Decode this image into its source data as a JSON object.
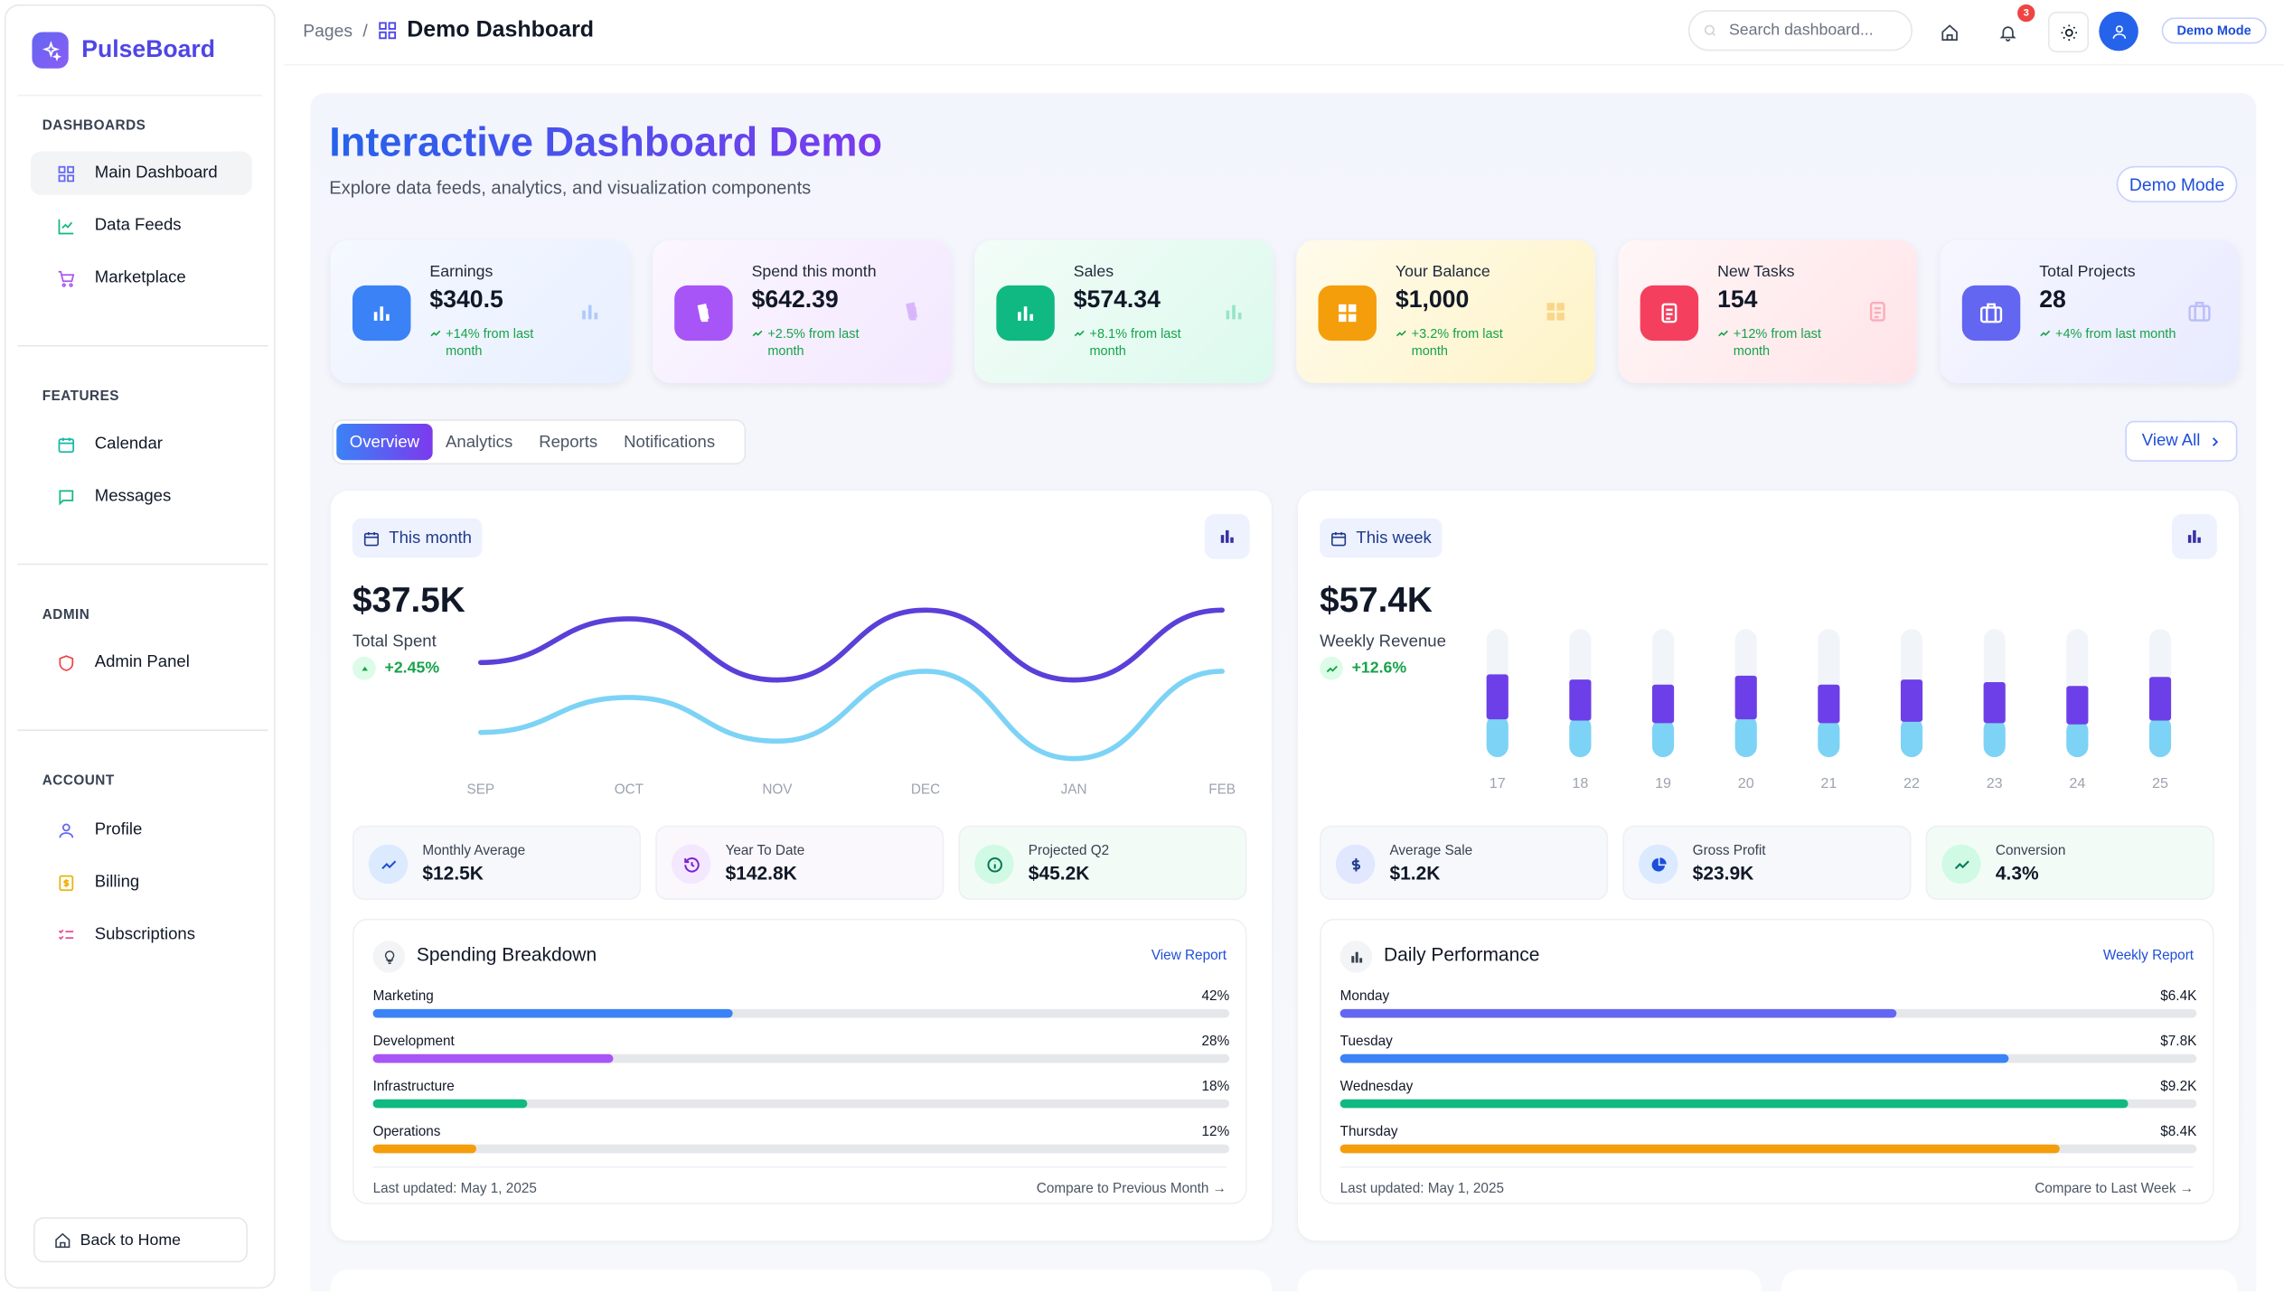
{
  "brand": {
    "name": "PulseBoard"
  },
  "sidebar": {
    "sections": [
      {
        "title": "DASHBOARDS",
        "items": [
          {
            "label": "Main Dashboard"
          },
          {
            "label": "Data Feeds"
          },
          {
            "label": "Marketplace"
          }
        ]
      },
      {
        "title": "FEATURES",
        "items": [
          {
            "label": "Calendar"
          },
          {
            "label": "Messages"
          }
        ]
      },
      {
        "title": "ADMIN",
        "items": [
          {
            "label": "Admin Panel"
          }
        ]
      },
      {
        "title": "ACCOUNT",
        "items": [
          {
            "label": "Profile"
          },
          {
            "label": "Billing"
          },
          {
            "label": "Subscriptions"
          }
        ]
      }
    ],
    "back_label": "Back to Home"
  },
  "header": {
    "crumb": "Pages",
    "sep": "/",
    "title": "Demo Dashboard",
    "search_placeholder": "Search dashboard...",
    "notif_count": "3",
    "demo_label": "Demo Mode"
  },
  "hero": {
    "title": "Interactive Dashboard Demo",
    "subtitle": "Explore data feeds, analytics, and visualization components",
    "demo_btn": "Demo Mode"
  },
  "stats": [
    {
      "label": "Earnings",
      "value": "$340.5",
      "trend": "+14% from last month",
      "color": "#3b82f6"
    },
    {
      "label": "Spend this month",
      "value": "$642.39",
      "trend": "+2.5% from last month",
      "color": "#a855f7"
    },
    {
      "label": "Sales",
      "value": "$574.34",
      "trend": "+8.1% from last month",
      "color": "#10b981"
    },
    {
      "label": "Your Balance",
      "value": "$1,000",
      "trend": "+3.2% from last month",
      "color": "#f59e0b"
    },
    {
      "label": "New Tasks",
      "value": "154",
      "trend": "+12% from last month",
      "color": "#f43f5e"
    },
    {
      "label": "Total Projects",
      "value": "28",
      "trend": "+4% from last month",
      "color": "#6366f1"
    }
  ],
  "tabs": [
    {
      "label": "Overview"
    },
    {
      "label": "Analytics"
    },
    {
      "label": "Reports"
    },
    {
      "label": "Notifications"
    }
  ],
  "view_all": "View All",
  "left_panel": {
    "period": "This month",
    "value": "$37.5K",
    "label": "Total Spent",
    "trend": "+2.45%",
    "minis": [
      {
        "label": "Monthly Average",
        "value": "$12.5K"
      },
      {
        "label": "Year To Date",
        "value": "$142.8K"
      },
      {
        "label": "Projected Q2",
        "value": "$45.2K"
      }
    ],
    "breakdown": {
      "title": "Spending Breakdown",
      "link": "View Report",
      "rows": [
        {
          "label": "Marketing",
          "value": "42%",
          "pct": 42,
          "color": "#3b82f6"
        },
        {
          "label": "Development",
          "value": "28%",
          "pct": 28,
          "color": "#a855f7"
        },
        {
          "label": "Infrastructure",
          "value": "18%",
          "pct": 18,
          "color": "#10b981"
        },
        {
          "label": "Operations",
          "value": "12%",
          "pct": 12,
          "color": "#f59e0b"
        }
      ],
      "updated": "Last updated: May 1, 2025",
      "compare": "Compare to Previous Month →"
    }
  },
  "right_panel": {
    "period": "This week",
    "value": "$57.4K",
    "label": "Weekly Revenue",
    "trend": "+12.6%",
    "minis": [
      {
        "label": "Average Sale",
        "value": "$1.2K"
      },
      {
        "label": "Gross Profit",
        "value": "$23.9K"
      },
      {
        "label": "Conversion",
        "value": "4.3%"
      }
    ],
    "performance": {
      "title": "Daily Performance",
      "link": "Weekly Report",
      "rows": [
        {
          "label": "Monday",
          "value": "$6.4K",
          "pct": 65,
          "color": "#6366f1"
        },
        {
          "label": "Tuesday",
          "value": "$7.8K",
          "pct": 78,
          "color": "#3b82f6"
        },
        {
          "label": "Wednesday",
          "value": "$9.2K",
          "pct": 92,
          "color": "#10b981"
        },
        {
          "label": "Thursday",
          "value": "$8.4K",
          "pct": 84,
          "color": "#f59e0b"
        }
      ],
      "updated": "Last updated: May 1, 2025",
      "compare": "Compare to Last Week →"
    }
  },
  "chart_data": [
    {
      "type": "line",
      "x": [
        "SEP",
        "OCT",
        "NOV",
        "DEC",
        "JAN",
        "FEB"
      ],
      "series": [
        {
          "values": [
            0.6,
            0.85,
            0.5,
            0.9,
            0.5,
            0.9
          ],
          "color": "#5b3fd9"
        },
        {
          "values": [
            0.2,
            0.4,
            0.15,
            0.55,
            0.05,
            0.55
          ],
          "color": "#7dd3f5"
        }
      ]
    },
    {
      "type": "bar",
      "categories": [
        "17",
        "18",
        "19",
        "20",
        "21",
        "22",
        "23",
        "24",
        "25"
      ],
      "series": [
        {
          "values": [
            0.35,
            0.32,
            0.3,
            0.34,
            0.3,
            0.33,
            0.32,
            0.3,
            0.34
          ],
          "color": "#6d3fe8"
        },
        {
          "values": [
            0.33,
            0.32,
            0.3,
            0.33,
            0.3,
            0.31,
            0.3,
            0.29,
            0.32
          ],
          "color": "#7dd3f5"
        }
      ]
    }
  ]
}
